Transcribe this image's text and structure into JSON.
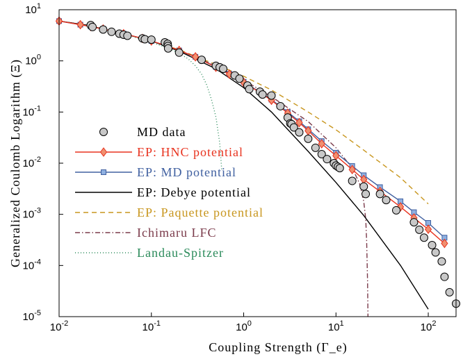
{
  "chart_data": {
    "type": "line",
    "xlabel": "Coupling Strength (Γ_e)",
    "ylabel": "Generalized Coulomb Logarithm (Ξ)",
    "xscale": "log",
    "yscale": "log",
    "xlim": [
      0.01,
      200
    ],
    "ylim": [
      1e-05,
      10
    ],
    "x_ticks": [
      {
        "value": 0.01,
        "base": "10",
        "exp": "-2"
      },
      {
        "value": 0.1,
        "base": "10",
        "exp": "-1"
      },
      {
        "value": 1,
        "base": "10",
        "exp": "0"
      },
      {
        "value": 10,
        "base": "10",
        "exp": "1"
      },
      {
        "value": 100,
        "base": "10",
        "exp": "2"
      }
    ],
    "y_ticks": [
      {
        "value": 1e-05,
        "base": "10",
        "exp": "-5"
      },
      {
        "value": 0.0001,
        "base": "10",
        "exp": "-4"
      },
      {
        "value": 0.001,
        "base": "10",
        "exp": "-3"
      },
      {
        "value": 0.01,
        "base": "10",
        "exp": "-2"
      },
      {
        "value": 0.1,
        "base": "10",
        "exp": "-1"
      },
      {
        "value": 1,
        "base": "10",
        "exp": "0"
      },
      {
        "value": 10,
        "base": "10",
        "exp": "1"
      }
    ],
    "grid": false,
    "legend_position": "bottom-left",
    "series": [
      {
        "name": "MD data",
        "style": "markers",
        "marker": "circle",
        "color": "#000000",
        "fill": "#c8c8c8",
        "x": [
          0.022,
          0.023,
          0.03,
          0.037,
          0.045,
          0.05,
          0.055,
          0.08,
          0.085,
          0.1,
          0.14,
          0.15,
          0.151,
          0.152,
          0.2,
          0.35,
          0.5,
          0.55,
          0.6,
          0.8,
          0.9,
          1.1,
          1.15,
          1.5,
          1.6,
          2.0,
          2.5,
          3.0,
          3.2,
          3.3,
          3.5,
          4.0,
          5.0,
          6.0,
          7.0,
          8.0,
          9.5,
          10.0,
          10.5,
          11.0,
          15.0,
          20.0,
          21.0,
          30.0,
          35.0,
          45.0,
          70.0,
          80.0,
          90.0,
          110.0,
          120.0,
          140.0,
          150.0,
          170.0,
          200.0
        ],
        "y": [
          5.0,
          4.6,
          4.1,
          3.7,
          3.4,
          3.25,
          3.1,
          2.75,
          2.65,
          2.6,
          2.3,
          2.15,
          1.95,
          1.75,
          1.45,
          1.05,
          0.8,
          0.75,
          0.7,
          0.52,
          0.45,
          0.33,
          0.28,
          0.25,
          0.22,
          0.21,
          0.13,
          0.078,
          0.06,
          0.058,
          0.05,
          0.04,
          0.03,
          0.02,
          0.015,
          0.012,
          0.01,
          0.009,
          0.0085,
          0.008,
          0.0045,
          0.0035,
          0.0025,
          0.0025,
          0.0019,
          0.0012,
          0.0007,
          0.0005,
          0.00035,
          0.00025,
          0.00018,
          0.00012,
          6e-05,
          3e-05,
          1.8e-05
        ]
      },
      {
        "name": "EP: HNC potential",
        "style": "line-markers",
        "marker": "diamond",
        "color": "#e8321e",
        "fill": "#f09070",
        "x": [
          0.01,
          0.017,
          0.022,
          0.03,
          0.05,
          0.08,
          0.1,
          0.15,
          0.2,
          0.3,
          0.5,
          0.7,
          1.0,
          1.5,
          2.0,
          3.0,
          4.0,
          5.0,
          7.0,
          10.0,
          15.0,
          20.0,
          30.0,
          50.0,
          70.0,
          100.0,
          150.0
        ],
        "y": [
          6.0,
          5.1,
          4.7,
          4.2,
          3.4,
          2.75,
          2.45,
          1.95,
          1.6,
          1.2,
          0.75,
          0.55,
          0.38,
          0.24,
          0.17,
          0.095,
          0.062,
          0.043,
          0.024,
          0.014,
          0.0075,
          0.0048,
          0.0028,
          0.0014,
          0.00085,
          0.00051,
          0.00027
        ]
      },
      {
        "name": "EP: MD potential",
        "style": "line-markers",
        "marker": "square",
        "color": "#4060a0",
        "fill": "#8fb0e0",
        "x": [
          0.01,
          0.017,
          0.022,
          0.03,
          0.05,
          0.08,
          0.1,
          0.15,
          0.2,
          0.3,
          0.5,
          0.7,
          1.0,
          1.5,
          2.0,
          3.0,
          4.0,
          5.0,
          7.0,
          10.0,
          15.0,
          20.0,
          30.0,
          50.0,
          70.0,
          100.0,
          150.0
        ],
        "y": [
          6.0,
          5.1,
          4.7,
          4.2,
          3.4,
          2.75,
          2.45,
          1.95,
          1.6,
          1.2,
          0.76,
          0.56,
          0.39,
          0.245,
          0.175,
          0.1,
          0.066,
          0.046,
          0.027,
          0.016,
          0.0088,
          0.0058,
          0.0034,
          0.0018,
          0.0011,
          0.00068,
          0.00035
        ]
      },
      {
        "name": "EP: Debye potential",
        "style": "line",
        "dash": "solid",
        "color": "#000000",
        "x": [
          0.01,
          0.02,
          0.05,
          0.1,
          0.2,
          0.5,
          1.0,
          2.0,
          5.0,
          10.0,
          20.0,
          50.0,
          100.0
        ],
        "y": [
          6.0,
          5.0,
          3.4,
          2.45,
          1.55,
          0.7,
          0.3,
          0.1,
          0.017,
          0.0042,
          0.00095,
          0.0001,
          1.4e-05
        ]
      },
      {
        "name": "EP: Paquette potential",
        "style": "line",
        "dash": "dashed",
        "color": "#c8961e",
        "x": [
          0.01,
          0.02,
          0.05,
          0.1,
          0.2,
          0.5,
          1.0,
          2.0,
          5.0,
          10.0,
          20.0,
          50.0,
          100.0
        ],
        "y": [
          6.0,
          5.0,
          3.4,
          2.45,
          1.65,
          0.85,
          0.5,
          0.27,
          0.1,
          0.045,
          0.018,
          0.0052,
          0.0016
        ]
      },
      {
        "name": "Ichimaru LFC",
        "style": "line",
        "dash": "dashdot",
        "color": "#7a3a4a",
        "x": [
          0.01,
          0.02,
          0.05,
          0.1,
          0.2,
          0.5,
          1.0,
          2.0,
          5.0,
          10.0,
          15.0,
          18.0,
          20.0,
          21.0,
          21.5,
          22.0,
          22.2
        ],
        "y": [
          6.0,
          5.0,
          3.4,
          2.45,
          1.6,
          0.8,
          0.42,
          0.2,
          0.065,
          0.02,
          0.008,
          0.004,
          0.0018,
          0.0008,
          0.0003,
          5e-05,
          1e-05
        ]
      },
      {
        "name": "Landau-Spitzer",
        "style": "line",
        "dash": "dotted",
        "color": "#2a8a5a",
        "x": [
          0.01,
          0.02,
          0.05,
          0.1,
          0.15,
          0.2,
          0.25,
          0.3,
          0.35,
          0.4,
          0.45,
          0.5,
          0.55,
          0.58
        ],
        "y": [
          6.0,
          5.0,
          3.4,
          2.3,
          1.8,
          1.4,
          1.1,
          0.8,
          0.55,
          0.33,
          0.17,
          0.08,
          0.025,
          0.007
        ]
      }
    ]
  }
}
